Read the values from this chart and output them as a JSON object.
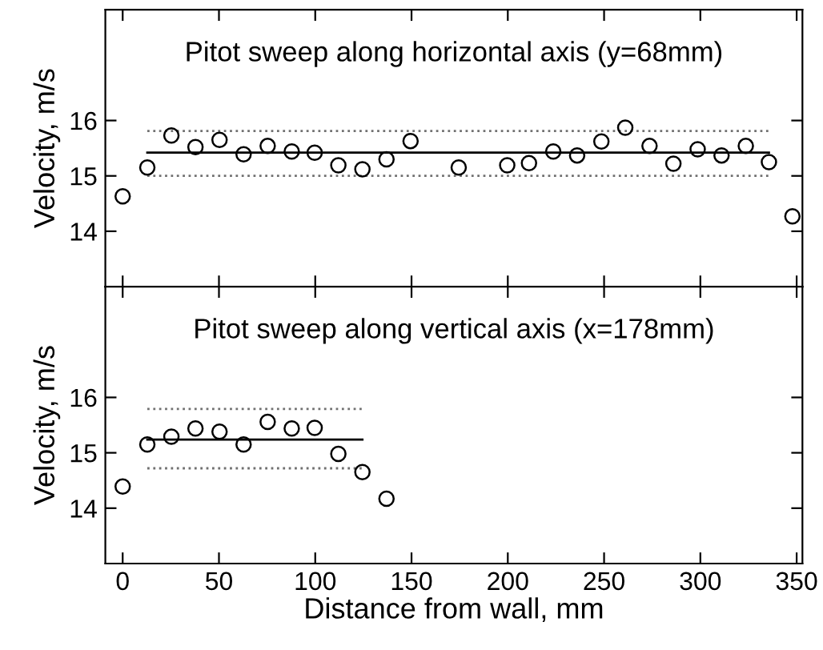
{
  "chart_data": [
    {
      "type": "scatter",
      "title": "Pitot sweep along horizontal axis (y=68mm)",
      "ylabel": "Velocity, m/s",
      "xlim": [
        -9,
        353
      ],
      "xticks": [
        0,
        50,
        100,
        150,
        200,
        250,
        300,
        350
      ],
      "ylim": [
        13,
        18
      ],
      "yticks": [
        14,
        15,
        16
      ],
      "tick_labels": "y",
      "marker": "circle",
      "grid": false,
      "series": [
        {
          "color": "#000000",
          "x": [
            0,
            12.8,
            25.3,
            37.8,
            50.3,
            62.8,
            75.3,
            87.8,
            99.7,
            112,
            124.5,
            137,
            149.5,
            174.5,
            199.7,
            211,
            223.6,
            236,
            248.6,
            261,
            273.6,
            286,
            298.6,
            311,
            323.6,
            335.6,
            347.8
          ],
          "values": [
            14.63,
            15.15,
            15.73,
            15.52,
            15.65,
            15.39,
            15.54,
            15.44,
            15.42,
            15.19,
            15.12,
            15.3,
            15.63,
            15.15,
            15.19,
            15.23,
            15.44,
            15.37,
            15.62,
            15.87,
            15.54,
            15.22,
            15.48,
            15.37,
            15.54,
            15.25,
            14.27
          ]
        },
        {
          "type": "line",
          "color": "#000000",
          "line_style": "solid",
          "marker": "none",
          "x": [
            12.8,
            335.6
          ],
          "values": [
            15.42,
            15.42
          ]
        },
        {
          "type": "line",
          "color": "#707070",
          "line_style": "dotted",
          "marker": "none",
          "x": [
            12.8,
            335.6
          ],
          "values": [
            15.81,
            15.81
          ]
        },
        {
          "type": "line",
          "color": "#707070",
          "line_style": "dotted",
          "marker": "none",
          "x": [
            12.8,
            335.6
          ],
          "values": [
            15.0,
            15.0
          ]
        }
      ]
    },
    {
      "type": "scatter",
      "title": "Pitot sweep along vertical axis (x=178mm)",
      "ylabel": "Velocity, m/s",
      "xlabel": "Distance from wall, mm",
      "xlim": [
        -9,
        353
      ],
      "xticks": [
        0,
        50,
        100,
        150,
        200,
        250,
        300,
        350
      ],
      "ylim": [
        13,
        18
      ],
      "yticks": [
        14,
        15,
        16
      ],
      "marker": "circle",
      "grid": false,
      "series": [
        {
          "color": "#000000",
          "x": [
            0,
            12.8,
            25.3,
            37.8,
            50.3,
            62.8,
            75.3,
            87.8,
            99.7,
            112,
            124.5,
            137
          ],
          "values": [
            14.39,
            15.15,
            15.29,
            15.44,
            15.38,
            15.15,
            15.56,
            15.44,
            15.45,
            14.98,
            14.65,
            14.17
          ]
        },
        {
          "type": "line",
          "color": "#000000",
          "line_style": "solid",
          "marker": "none",
          "x": [
            12.8,
            124.5
          ],
          "values": [
            15.24,
            15.24
          ]
        },
        {
          "type": "line",
          "color": "#707070",
          "line_style": "dotted",
          "marker": "none",
          "x": [
            12.8,
            124.5
          ],
          "values": [
            15.79,
            15.79
          ]
        },
        {
          "type": "line",
          "color": "#707070",
          "line_style": "dotted",
          "marker": "none",
          "x": [
            12.8,
            124.5
          ],
          "values": [
            14.72,
            14.72
          ]
        }
      ]
    }
  ]
}
